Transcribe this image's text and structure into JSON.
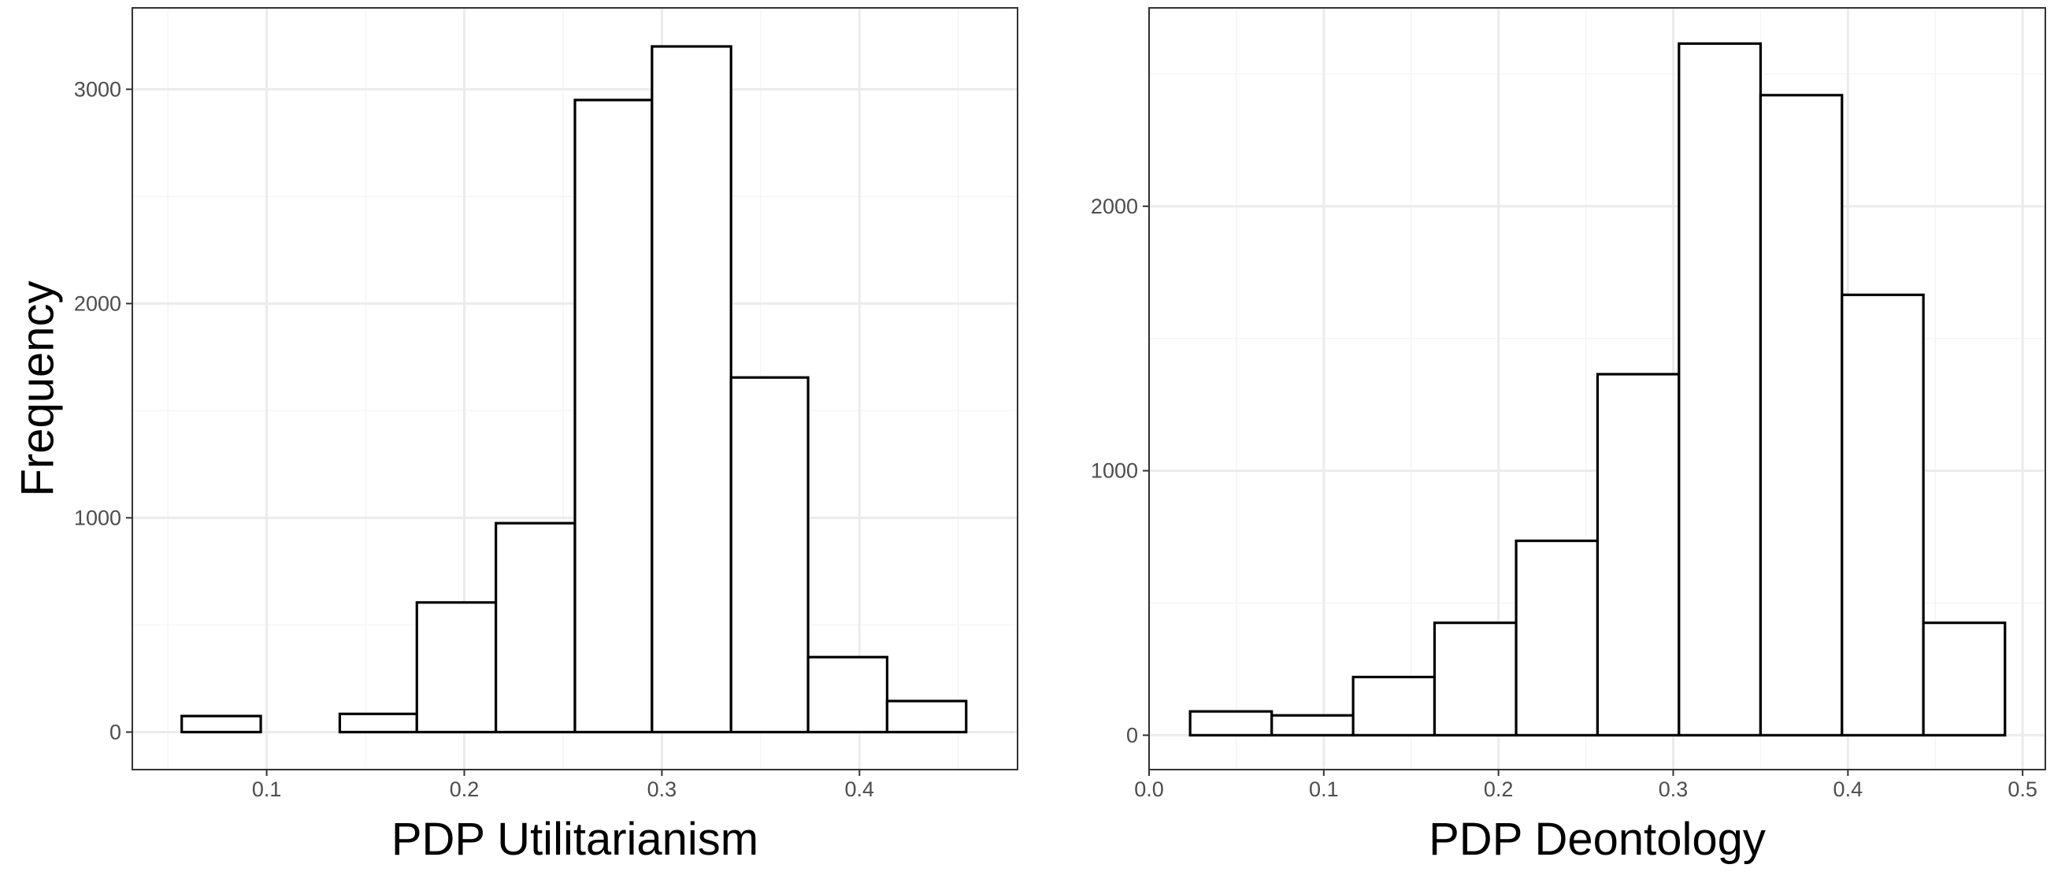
{
  "chart_data": [
    {
      "type": "bar",
      "xlabel": "PDP Utilitarianism",
      "ylabel": "Frequency",
      "bins": [
        {
          "x0": 0.057,
          "x1": 0.097,
          "count": 75
        },
        {
          "x0": 0.097,
          "x1": 0.137,
          "count": 0
        },
        {
          "x0": 0.137,
          "x1": 0.176,
          "count": 85
        },
        {
          "x0": 0.176,
          "x1": 0.216,
          "count": 605
        },
        {
          "x0": 0.216,
          "x1": 0.256,
          "count": 975
        },
        {
          "x0": 0.256,
          "x1": 0.295,
          "count": 2950
        },
        {
          "x0": 0.295,
          "x1": 0.335,
          "count": 3200
        },
        {
          "x0": 0.335,
          "x1": 0.374,
          "count": 1655
        },
        {
          "x0": 0.374,
          "x1": 0.414,
          "count": 350
        },
        {
          "x0": 0.414,
          "x1": 0.454,
          "count": 145
        }
      ],
      "xlim": [
        0.032,
        0.48
      ],
      "ylim": [
        -175,
        3380
      ],
      "xticks": [
        {
          "v": 0.1,
          "label": "0.1"
        },
        {
          "v": 0.2,
          "label": "0.2"
        },
        {
          "v": 0.3,
          "label": "0.3"
        },
        {
          "v": 0.4,
          "label": "0.4"
        }
      ],
      "xminor": [
        0.05,
        0.15,
        0.25,
        0.35,
        0.45
      ],
      "yticks": [
        {
          "v": 0,
          "label": "0"
        },
        {
          "v": 1000,
          "label": "1000"
        },
        {
          "v": 2000,
          "label": "2000"
        },
        {
          "v": 3000,
          "label": "3000"
        }
      ],
      "yminor": [
        500,
        1500,
        2500
      ],
      "grid": true,
      "legend": "none"
    },
    {
      "type": "bar",
      "xlabel": "PDP Deontology",
      "ylabel": "",
      "bins": [
        {
          "x0": 0.0235,
          "x1": 0.0702,
          "count": 90
        },
        {
          "x0": 0.0702,
          "x1": 0.1168,
          "count": 75
        },
        {
          "x0": 0.1168,
          "x1": 0.1634,
          "count": 220
        },
        {
          "x0": 0.1634,
          "x1": 0.2101,
          "count": 425
        },
        {
          "x0": 0.2101,
          "x1": 0.2567,
          "count": 735
        },
        {
          "x0": 0.2567,
          "x1": 0.3033,
          "count": 1365
        },
        {
          "x0": 0.3033,
          "x1": 0.35,
          "count": 2615
        },
        {
          "x0": 0.35,
          "x1": 0.3966,
          "count": 2420
        },
        {
          "x0": 0.3966,
          "x1": 0.4432,
          "count": 1665
        },
        {
          "x0": 0.4432,
          "x1": 0.4899,
          "count": 425
        }
      ],
      "xlim": [
        0,
        0.513
      ],
      "ylim": [
        -130,
        2750
      ],
      "xticks": [
        {
          "v": 0,
          "label": "0.0"
        },
        {
          "v": 0.1,
          "label": "0.1"
        },
        {
          "v": 0.2,
          "label": "0.2"
        },
        {
          "v": 0.3,
          "label": "0.3"
        },
        {
          "v": 0.4,
          "label": "0.4"
        },
        {
          "v": 0.5,
          "label": "0.5"
        }
      ],
      "xminor": [
        0.05,
        0.15,
        0.25,
        0.35,
        0.45
      ],
      "yticks": [
        {
          "v": 0,
          "label": "0"
        },
        {
          "v": 1000,
          "label": "1000"
        },
        {
          "v": 2000,
          "label": "2000"
        }
      ],
      "yminor": [
        500,
        1500,
        2500
      ],
      "grid": true,
      "legend": "none"
    }
  ],
  "colors": {
    "bar_fill": "#ffffff",
    "bar_stroke": "#000000",
    "grid_major": "#ebebeb",
    "grid_minor": "#f5f5f5",
    "panel_border": "#333333",
    "tick_text": "#4d4d4d"
  }
}
